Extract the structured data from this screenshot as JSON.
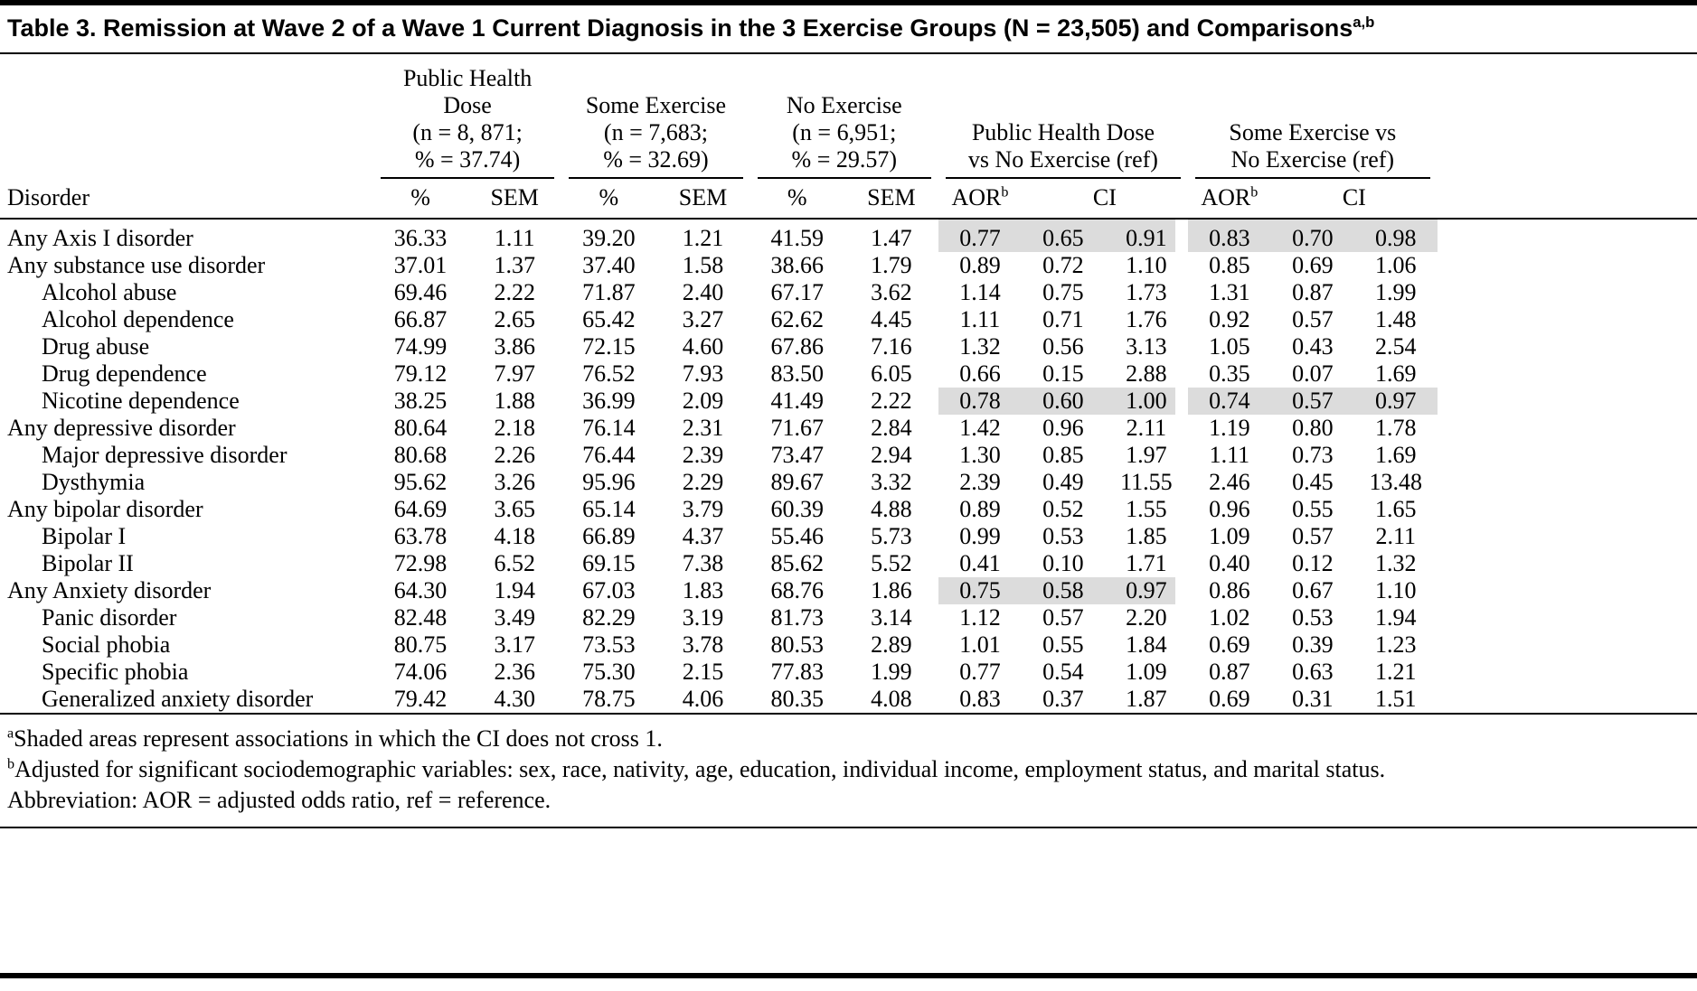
{
  "table": {
    "title": "Table 3. Remission at Wave 2 of a Wave 1 Current Diagnosis in the 3 Exercise Groups (N = 23,505) and Comparisons",
    "title_sup": "a,b",
    "shading_color": "#dcdcdc",
    "groups": [
      {
        "label": "Public Health Dose\n(n = 8, 871;\n% = 37.74)"
      },
      {
        "label": "Some Exercise\n(n = 7,683;\n% = 32.69)"
      },
      {
        "label": "No Exercise\n(n = 6,951;\n% = 29.57)"
      },
      {
        "label": "Public Health Dose\nvs No Exercise (ref)"
      },
      {
        "label": "Some Exercise vs\nNo Exercise (ref)"
      }
    ],
    "subheaders": {
      "disorder": "Disorder",
      "pct": "%",
      "sem": "SEM",
      "aor": "AOR",
      "aor_sup": "b",
      "ci": "CI"
    },
    "rows": [
      {
        "disorder": "Any Axis I disorder",
        "indent": false,
        "shaded1": true,
        "shaded2": true,
        "values": [
          "36.33",
          "1.11",
          "39.20",
          "1.21",
          "41.59",
          "1.47",
          "0.77",
          "0.65",
          "0.91",
          "0.83",
          "0.70",
          "0.98"
        ]
      },
      {
        "disorder": "Any substance use disorder",
        "indent": false,
        "values": [
          "37.01",
          "1.37",
          "37.40",
          "1.58",
          "38.66",
          "1.79",
          "0.89",
          "0.72",
          "1.10",
          "0.85",
          "0.69",
          "1.06"
        ]
      },
      {
        "disorder": "Alcohol abuse",
        "indent": true,
        "values": [
          "69.46",
          "2.22",
          "71.87",
          "2.40",
          "67.17",
          "3.62",
          "1.14",
          "0.75",
          "1.73",
          "1.31",
          "0.87",
          "1.99"
        ]
      },
      {
        "disorder": "Alcohol dependence",
        "indent": true,
        "values": [
          "66.87",
          "2.65",
          "65.42",
          "3.27",
          "62.62",
          "4.45",
          "1.11",
          "0.71",
          "1.76",
          "0.92",
          "0.57",
          "1.48"
        ]
      },
      {
        "disorder": "Drug abuse",
        "indent": true,
        "values": [
          "74.99",
          "3.86",
          "72.15",
          "4.60",
          "67.86",
          "7.16",
          "1.32",
          "0.56",
          "3.13",
          "1.05",
          "0.43",
          "2.54"
        ]
      },
      {
        "disorder": "Drug dependence",
        "indent": true,
        "values": [
          "79.12",
          "7.97",
          "76.52",
          "7.93",
          "83.50",
          "6.05",
          "0.66",
          "0.15",
          "2.88",
          "0.35",
          "0.07",
          "1.69"
        ]
      },
      {
        "disorder": "Nicotine dependence",
        "indent": true,
        "shaded1": true,
        "shaded2": true,
        "values": [
          "38.25",
          "1.88",
          "36.99",
          "2.09",
          "41.49",
          "2.22",
          "0.78",
          "0.60",
          "1.00",
          "0.74",
          "0.57",
          "0.97"
        ]
      },
      {
        "disorder": "Any depressive disorder",
        "indent": false,
        "values": [
          "80.64",
          "2.18",
          "76.14",
          "2.31",
          "71.67",
          "2.84",
          "1.42",
          "0.96",
          "2.11",
          "1.19",
          "0.80",
          "1.78"
        ]
      },
      {
        "disorder": "Major depressive disorder",
        "indent": true,
        "values": [
          "80.68",
          "2.26",
          "76.44",
          "2.39",
          "73.47",
          "2.94",
          "1.30",
          "0.85",
          "1.97",
          "1.11",
          "0.73",
          "1.69"
        ]
      },
      {
        "disorder": "Dysthymia",
        "indent": true,
        "values": [
          "95.62",
          "3.26",
          "95.96",
          "2.29",
          "89.67",
          "3.32",
          "2.39",
          "0.49",
          "11.55",
          "2.46",
          "0.45",
          "13.48"
        ]
      },
      {
        "disorder": "Any bipolar disorder",
        "indent": false,
        "values": [
          "64.69",
          "3.65",
          "65.14",
          "3.79",
          "60.39",
          "4.88",
          "0.89",
          "0.52",
          "1.55",
          "0.96",
          "0.55",
          "1.65"
        ]
      },
      {
        "disorder": "Bipolar I",
        "indent": true,
        "values": [
          "63.78",
          "4.18",
          "66.89",
          "4.37",
          "55.46",
          "5.73",
          "0.99",
          "0.53",
          "1.85",
          "1.09",
          "0.57",
          "2.11"
        ]
      },
      {
        "disorder": "Bipolar II",
        "indent": true,
        "values": [
          "72.98",
          "6.52",
          "69.15",
          "7.38",
          "85.62",
          "5.52",
          "0.41",
          "0.10",
          "1.71",
          "0.40",
          "0.12",
          "1.32"
        ]
      },
      {
        "disorder": "Any Anxiety disorder",
        "indent": false,
        "shaded1": true,
        "values": [
          "64.30",
          "1.94",
          "67.03",
          "1.83",
          "68.76",
          "1.86",
          "0.75",
          "0.58",
          "0.97",
          "0.86",
          "0.67",
          "1.10"
        ]
      },
      {
        "disorder": "Panic disorder",
        "indent": true,
        "values": [
          "82.48",
          "3.49",
          "82.29",
          "3.19",
          "81.73",
          "3.14",
          "1.12",
          "0.57",
          "2.20",
          "1.02",
          "0.53",
          "1.94"
        ]
      },
      {
        "disorder": "Social phobia",
        "indent": true,
        "values": [
          "80.75",
          "3.17",
          "73.53",
          "3.78",
          "80.53",
          "2.89",
          "1.01",
          "0.55",
          "1.84",
          "0.69",
          "0.39",
          "1.23"
        ]
      },
      {
        "disorder": "Specific phobia",
        "indent": true,
        "values": [
          "74.06",
          "2.36",
          "75.30",
          "2.15",
          "77.83",
          "1.99",
          "0.77",
          "0.54",
          "1.09",
          "0.87",
          "0.63",
          "1.21"
        ]
      },
      {
        "disorder": "Generalized anxiety disorder",
        "indent": true,
        "values": [
          "79.42",
          "4.30",
          "78.75",
          "4.06",
          "80.35",
          "4.08",
          "0.83",
          "0.37",
          "1.87",
          "0.69",
          "0.31",
          "1.51"
        ]
      }
    ],
    "footnotes": [
      {
        "sup": "a",
        "text": "Shaded areas represent associations in which the CI does not cross 1."
      },
      {
        "sup": "b",
        "text": "Adjusted for significant sociodemographic variables: sex, race, nativity, age, education, individual income, employment status, and marital status."
      },
      {
        "sup": "",
        "text": "Abbreviation: AOR = adjusted odds ratio, ref = reference."
      }
    ]
  }
}
